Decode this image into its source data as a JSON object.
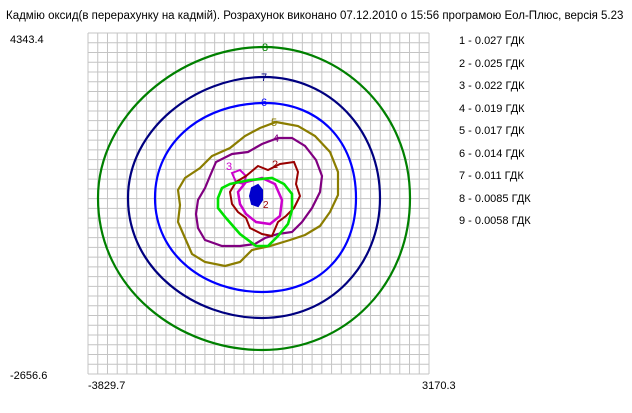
{
  "chart_data": {
    "type": "contour",
    "title": "Кадмію оксид(в перерахунку на кадмій). Розрахунок виконано 07.12.2010 о 15:56 програмою Еол-Плюс, версія 5.23",
    "xlim": [
      -3829.7,
      3170.3
    ],
    "ylim": [
      -2656.6,
      4343.4
    ],
    "x_min_label": "-3829.7",
    "x_max_label": "3170.3",
    "y_min_label": "-2656.6",
    "y_max_label": "4343.4",
    "grid": true,
    "legend_position": "right",
    "levels": [
      {
        "id": "1",
        "label": "1 - 0.027 ГДК",
        "color": "#0000cc"
      },
      {
        "id": "2",
        "label": "2 - 0.025 ГДК",
        "color": "#990000"
      },
      {
        "id": "3",
        "label": "3 - 0.022 ГДК",
        "color": "#cc00cc"
      },
      {
        "id": "4",
        "label": "4 - 0.019 ГДК",
        "color": "#800080"
      },
      {
        "id": "5",
        "label": "5 - 0.017 ГДК",
        "color": "#8b7d00"
      },
      {
        "id": "6",
        "label": "6 - 0.014 ГДК",
        "color": "#0000ff"
      },
      {
        "id": "7",
        "label": "7 - 0.011 ГДК",
        "color": "#000080"
      },
      {
        "id": "8",
        "label": "8 - 0.0085 ГДК",
        "color": "#008000"
      },
      {
        "id": "9",
        "label": "9 - 0.0058 ГДК",
        "color": "#00e000"
      }
    ]
  }
}
